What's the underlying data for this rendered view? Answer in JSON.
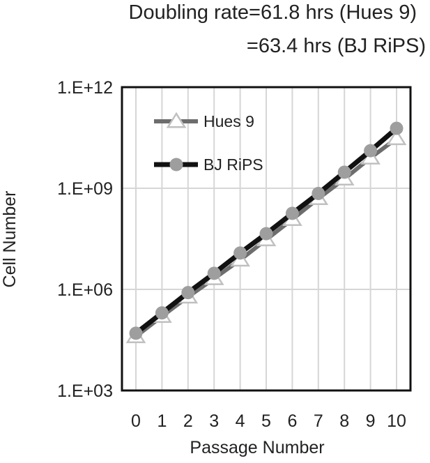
{
  "chart_data": {
    "type": "line",
    "title_lines": [
      "Doubling rate=61.8 hrs (Hues 9)",
      "=63.4 hrs (BJ RiPS)"
    ],
    "xlabel": "Passage Number",
    "ylabel": "Cell Number",
    "x": [
      0,
      1,
      2,
      3,
      4,
      5,
      6,
      7,
      8,
      9,
      10
    ],
    "x_tick_labels": [
      "0",
      "1",
      "2",
      "3",
      "4",
      "5",
      "6",
      "7",
      "8",
      "9",
      "10"
    ],
    "y_scale": "log",
    "ylim": [
      1000,
      1000000000000
    ],
    "y_ticks": [
      1000,
      1000000,
      1000000000,
      1000000000000
    ],
    "y_tick_labels": [
      "1.E+03",
      "1.E+06",
      "1.E+09",
      "1.E+12"
    ],
    "grid": true,
    "legend_position": "top-left",
    "series": [
      {
        "name": "Hues 9",
        "color": "#6d6d6d",
        "marker": "triangle",
        "marker_color": "#c0c0c0",
        "values": [
          40000,
          160000,
          600000,
          2100000,
          7500000,
          30000000,
          120000000,
          500000000,
          1900000000,
          8000000000,
          30000000000
        ]
      },
      {
        "name": "BJ RiPS",
        "color": "#111111",
        "marker": "circle",
        "marker_color": "#9e9e9e",
        "values": [
          50000,
          200000,
          800000,
          3000000,
          12000000,
          45000000,
          180000000,
          700000000,
          3000000000,
          13000000000,
          60000000000
        ]
      }
    ]
  }
}
